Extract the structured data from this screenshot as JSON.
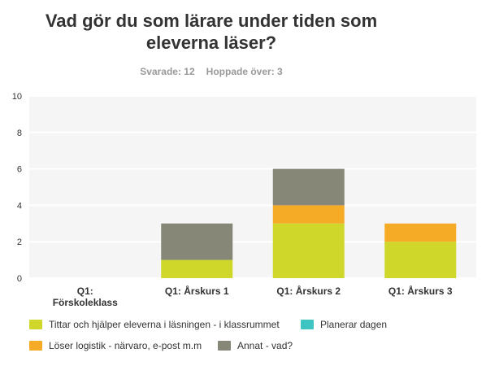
{
  "title": "Vad gör du som lärare under tiden som\neleverna läser?",
  "stats": {
    "answered": "Svarade: 12",
    "skipped": "Hoppade över: 3"
  },
  "chart_data": {
    "type": "bar",
    "stacked": true,
    "categories": [
      "Q1:\nFörskoleklass",
      "Q1:  Årskurs 1",
      "Q1: Årskurs 2",
      "Q1: Årskurs 3"
    ],
    "series": [
      {
        "name": "Tittar och hjälper eleverna i läsningen - i klassrummet",
        "color": "#cfd82a",
        "values": [
          0,
          1,
          3,
          2
        ]
      },
      {
        "name": "Löser logistik - närvaro, e-post m.m",
        "color": "#f5ab26",
        "values": [
          0,
          0,
          1,
          1
        ]
      },
      {
        "name": "Annat - vad?",
        "color": "#878777",
        "values": [
          0,
          2,
          2,
          0
        ]
      },
      {
        "name": "Planerar dagen",
        "color": "#3ec3c3",
        "values": [
          0,
          0,
          0,
          0
        ]
      }
    ],
    "ylim": [
      0,
      10
    ],
    "yticks": [
      0,
      2,
      4,
      6,
      8,
      10
    ],
    "grid": true,
    "legend_position": "bottom"
  },
  "legend": [
    {
      "label": "Tittar och hjälper eleverna i läsningen - i klassrummet",
      "color": "#cfd82a"
    },
    {
      "label": "Planerar dagen",
      "color": "#3ec3c3"
    },
    {
      "label": "Löser logistik - närvaro, e-post m.m",
      "color": "#f5ab26"
    },
    {
      "label": "Annat - vad?",
      "color": "#878777"
    }
  ]
}
